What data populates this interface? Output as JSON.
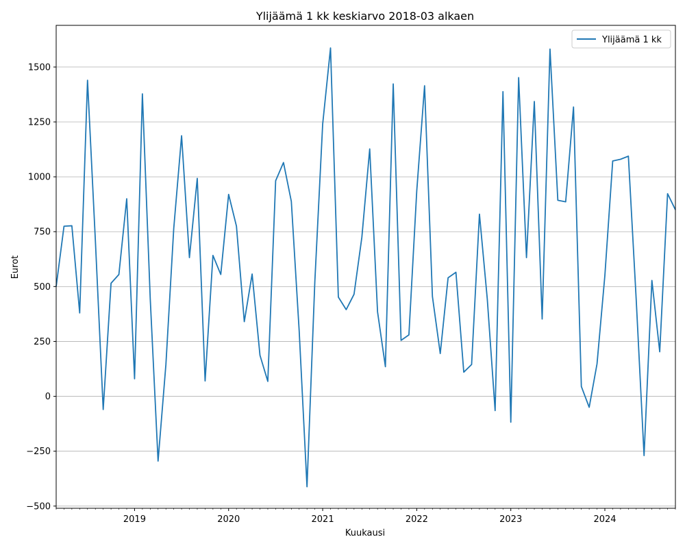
{
  "chart_data": {
    "type": "line",
    "title": "Ylijäämä 1 kk keskiarvo 2018-03 alkaen",
    "xlabel": "Kuukausi",
    "ylabel": "Eurot",
    "x_start": "2018-03",
    "x_end": "2024-10",
    "xlim": [
      "2018-03",
      "2024-10"
    ],
    "ylim": [
      -510,
      1690
    ],
    "grid": "y",
    "legend_position": "top-right",
    "color": "#1f77b4",
    "x_ticks": [
      "2019",
      "2020",
      "2021",
      "2022",
      "2023",
      "2024"
    ],
    "y_ticks": [
      -500,
      -250,
      0,
      250,
      500,
      750,
      1000,
      1250,
      1500
    ],
    "series": [
      {
        "name": "Ylijäämä 1 kk",
        "x": [
          "2018-03",
          "2018-04",
          "2018-05",
          "2018-06",
          "2018-07",
          "2018-08",
          "2018-09",
          "2018-10",
          "2018-11",
          "2018-12",
          "2019-01",
          "2019-02",
          "2019-03",
          "2019-04",
          "2019-05",
          "2019-06",
          "2019-07",
          "2019-08",
          "2019-09",
          "2019-10",
          "2019-11",
          "2019-12",
          "2020-01",
          "2020-02",
          "2020-03",
          "2020-04",
          "2020-05",
          "2020-06",
          "2020-07",
          "2020-08",
          "2020-09",
          "2020-10",
          "2020-11",
          "2020-12",
          "2021-01",
          "2021-02",
          "2021-03",
          "2021-04",
          "2021-05",
          "2021-06",
          "2021-07",
          "2021-08",
          "2021-09",
          "2021-10",
          "2021-11",
          "2021-12",
          "2022-01",
          "2022-02",
          "2022-03",
          "2022-04",
          "2022-05",
          "2022-06",
          "2022-07",
          "2022-08",
          "2022-09",
          "2022-10",
          "2022-11",
          "2022-12",
          "2023-01",
          "2023-02",
          "2023-03",
          "2023-04",
          "2023-05",
          "2023-06",
          "2023-07",
          "2023-08",
          "2023-09",
          "2023-10",
          "2023-11",
          "2023-12",
          "2024-01",
          "2024-02",
          "2024-03",
          "2024-04",
          "2024-05",
          "2024-06",
          "2024-07",
          "2024-08",
          "2024-09",
          "2024-10"
        ],
        "values": [
          500,
          775,
          777,
          380,
          1440,
          710,
          -60,
          515,
          555,
          900,
          80,
          1378,
          445,
          -295,
          145,
          765,
          1187,
          632,
          993,
          70,
          642,
          555,
          920,
          775,
          340,
          557,
          187,
          68,
          982,
          1065,
          888,
          300,
          -412,
          523,
          1240,
          1587,
          452,
          395,
          465,
          725,
          1127,
          385,
          135,
          1423,
          255,
          280,
          935,
          1415,
          455,
          195,
          540,
          565,
          110,
          145,
          830,
          443,
          -65,
          1388,
          -118,
          1452,
          632,
          1343,
          352,
          1582,
          893,
          886,
          1318,
          45,
          -50,
          148,
          550,
          1072,
          1080,
          1094,
          440,
          -270,
          528,
          203,
          923,
          850
        ]
      }
    ]
  }
}
